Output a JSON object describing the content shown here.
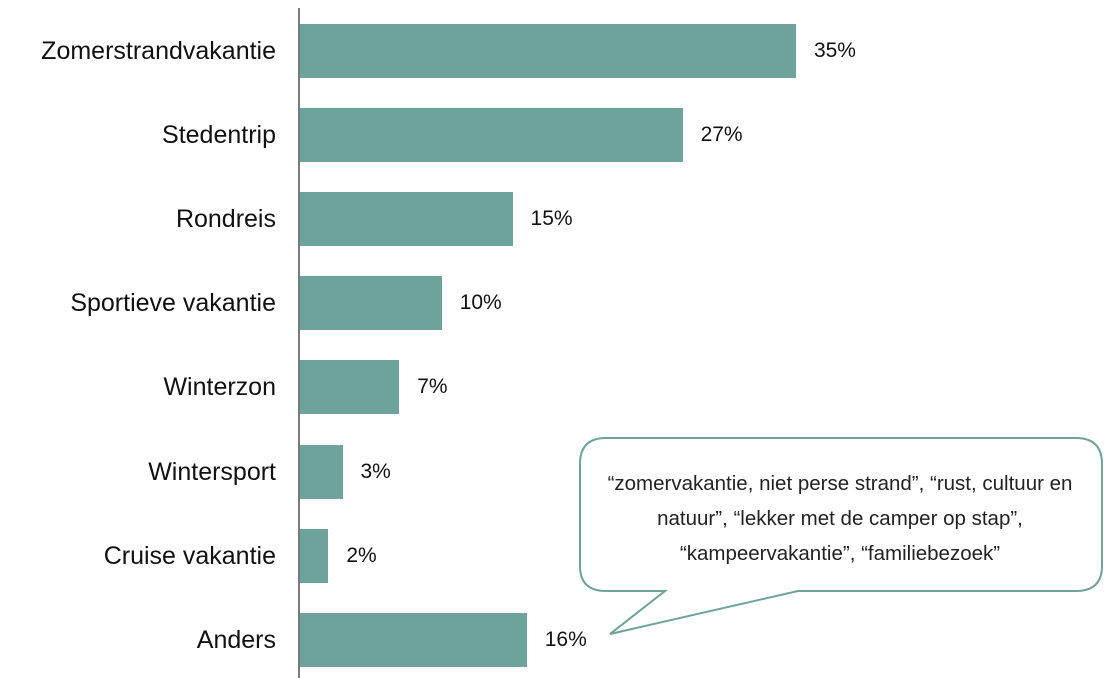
{
  "chart_data": {
    "type": "bar",
    "orientation": "horizontal",
    "categories": [
      "Zomerstrandvakantie",
      "Stedentrip",
      "Rondreis",
      "Sportieve vakantie",
      "Winterzon",
      "Wintersport",
      "Cruise vakantie",
      "Anders"
    ],
    "values": [
      35,
      27,
      15,
      10,
      7,
      3,
      2,
      16
    ],
    "value_labels": [
      "35%",
      "27%",
      "15%",
      "10%",
      "7%",
      "3%",
      "2%",
      "16%"
    ],
    "unit": "%",
    "xlim": [
      0,
      50
    ],
    "grid": false,
    "bar_color": "#6ea39c",
    "annotation": {
      "target_category": "Anders",
      "text": "“zomervakantie, niet perse strand”, “rust, cultuur en natuur”, “lekker met de camper op stap”, “kampeervakantie”, “familiebezoek”",
      "border_color": "#6ea39c"
    }
  }
}
